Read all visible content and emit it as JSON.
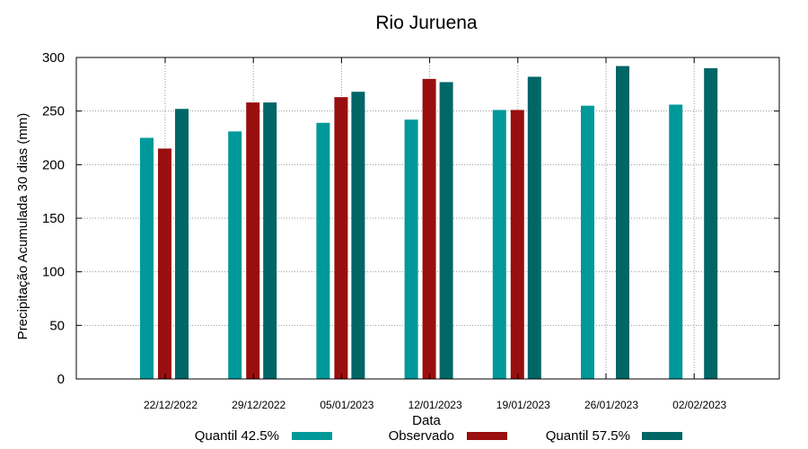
{
  "chart_data": {
    "type": "bar",
    "title": "Rio Juruena",
    "xlabel": "Data",
    "ylabel": "Precipitação Acumulada 30 dias (mm)",
    "ylim": [
      0,
      300
    ],
    "yticks": [
      0,
      50,
      100,
      150,
      200,
      250,
      300
    ],
    "grid": true,
    "legend_position": "bottom",
    "categories": [
      "22/12/2022",
      "29/12/2022",
      "05/01/2023",
      "12/01/2023",
      "19/01/2023",
      "26/01/2023",
      "02/02/2023"
    ],
    "series": [
      {
        "name": "Quantil 42.5%",
        "color": "#009999",
        "values": [
          225,
          231,
          239,
          242,
          251,
          255,
          256
        ]
      },
      {
        "name": "Observado",
        "color": "#990f0f",
        "values": [
          215,
          258,
          263,
          280,
          251,
          null,
          null
        ]
      },
      {
        "name": "Quantil 57.5%",
        "color": "#006666",
        "values": [
          252,
          258,
          268,
          277,
          282,
          292,
          290
        ]
      }
    ]
  }
}
